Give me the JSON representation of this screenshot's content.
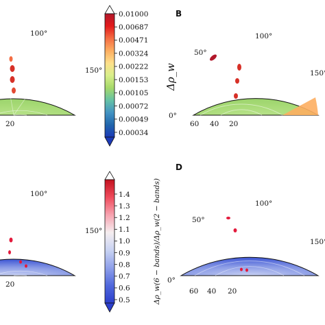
{
  "panels": [
    {
      "id": "A",
      "label": "",
      "angle_ticks": [
        "100°",
        "150°"
      ],
      "radial_ticks": [
        "20"
      ]
    },
    {
      "id": "B",
      "label": "B",
      "angle_ticks": [
        "0°",
        "50°",
        "100°",
        "150°"
      ],
      "radial_ticks": [
        "60",
        "40",
        "20"
      ]
    },
    {
      "id": "C",
      "label": "",
      "angle_ticks": [
        "100°",
        "150°"
      ],
      "radial_ticks": [
        "20"
      ]
    },
    {
      "id": "D",
      "label": "D",
      "angle_ticks": [
        "0°",
        "50°",
        "100°",
        "150°"
      ],
      "radial_ticks": [
        "60",
        "40",
        "20"
      ]
    }
  ],
  "colorbars": [
    {
      "id": "top",
      "label": "Δρ_w",
      "ticks": [
        "0.01000",
        "0.00687",
        "0.00471",
        "0.00324",
        "0.00222",
        "0.00153",
        "0.00105",
        "0.00072",
        "0.00049",
        "0.00034"
      ],
      "colors": [
        "#b2182b",
        "#e31a1c",
        "#f46d43",
        "#fdae61",
        "#fee08b",
        "#d9ef8b",
        "#a6d96a",
        "#66c2a5",
        "#4393c3",
        "#2166ac",
        "#1c3ab8"
      ]
    },
    {
      "id": "bottom",
      "label": "Δρ_w(6 − bands)/Δρ_w(2 − bands)",
      "ticks": [
        "1.4",
        "1.3",
        "1.2",
        "1.1",
        "1.0",
        "0.9",
        "0.8",
        "0.7",
        "0.6",
        "0.5"
      ],
      "colors": [
        "#c4121f",
        "#ef4b5c",
        "#f7a3b0",
        "#f5eef0",
        "#c9d3f3",
        "#8fa0ea",
        "#5068dc",
        "#2c3fcc"
      ]
    }
  ],
  "chart_data": [
    {
      "type": "heatmap",
      "panel": "A",
      "coordinates": "polar",
      "value": "Δρ_w",
      "theta_ticks_deg": [
        100,
        150
      ],
      "r_ticks": [
        20
      ],
      "colorscale": "top"
    },
    {
      "type": "heatmap",
      "panel": "B",
      "coordinates": "polar",
      "value": "Δρ_w",
      "theta_ticks_deg": [
        0,
        50,
        100,
        150
      ],
      "r_ticks": [
        60,
        40,
        20
      ],
      "colorscale": "top"
    },
    {
      "type": "heatmap",
      "panel": "C",
      "coordinates": "polar",
      "value": "Δρ_w(6 − bands)/Δρ_w(2 − bands)",
      "theta_ticks_deg": [
        100,
        150
      ],
      "r_ticks": [
        20
      ],
      "colorscale": "bottom"
    },
    {
      "type": "heatmap",
      "panel": "D",
      "coordinates": "polar",
      "value": "Δρ_w(6 − bands)/Δρ_w(2 − bands)",
      "theta_ticks_deg": [
        0,
        50,
        100,
        150
      ],
      "r_ticks": [
        60,
        40,
        20
      ],
      "colorscale": "bottom"
    }
  ]
}
